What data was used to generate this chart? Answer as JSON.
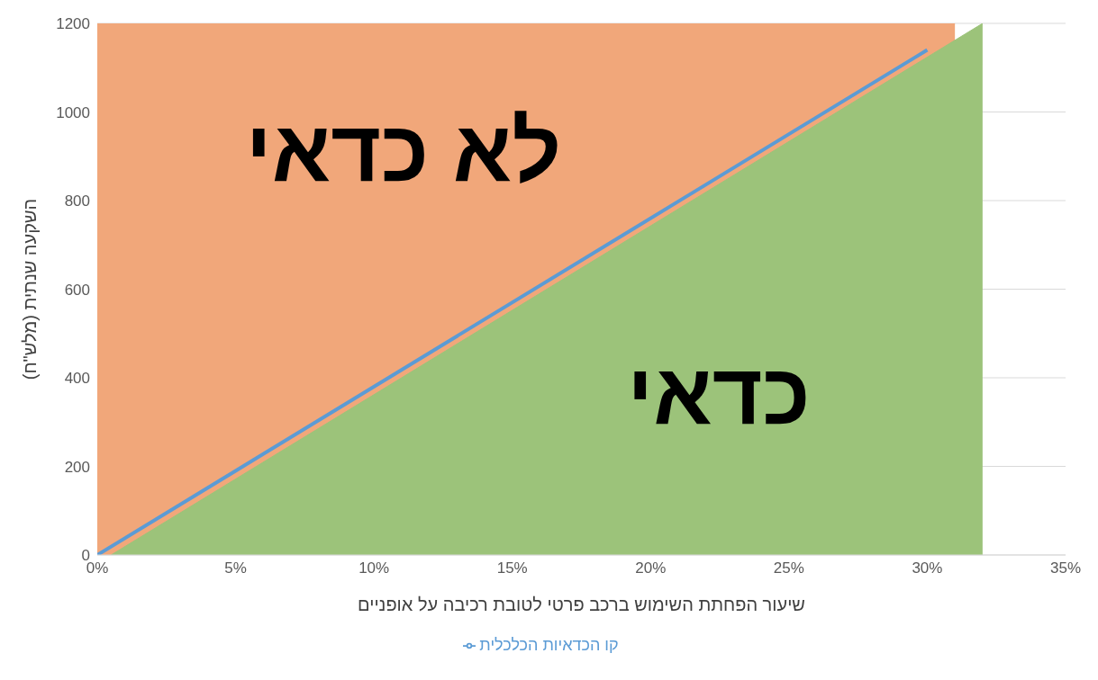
{
  "chart_data": {
    "type": "area",
    "xlabel": "שיעור הפחתת השימוש ברכב פרטי לטובת רכיבה על אופניים",
    "ylabel": "השקעה שנתית (מלש\"ח)",
    "annotations": [
      "לא כדאי",
      "כדאי"
    ],
    "xlim": [
      0,
      35
    ],
    "xticks": [
      {
        "value": 0,
        "label": "0%"
      },
      {
        "value": 5,
        "label": "5%"
      },
      {
        "value": 10,
        "label": "10%"
      },
      {
        "value": 15,
        "label": "15%"
      },
      {
        "value": 20,
        "label": "20%"
      },
      {
        "value": 25,
        "label": "25%"
      },
      {
        "value": 30,
        "label": "30%"
      },
      {
        "value": 35,
        "label": "35%"
      }
    ],
    "ylim": [
      0,
      1200
    ],
    "yticks": [
      0,
      200,
      400,
      600,
      800,
      1000,
      1200
    ],
    "grid": "y",
    "legend": "bottom",
    "marker": "none",
    "line_style": "solid",
    "series": [
      {
        "color": "#f1a77a",
        "x": [
          0,
          31
        ],
        "values": [
          1200,
          1200
        ]
      },
      {
        "color": "#9cc37a",
        "x": [
          0.5,
          32
        ],
        "values": [
          0,
          1200
        ]
      },
      {
        "type": "line",
        "name": "קו הכדאיות הכלכלית",
        "color": "#5b9bd5",
        "x": [
          0,
          30
        ],
        "values": [
          0,
          1140
        ]
      }
    ]
  }
}
